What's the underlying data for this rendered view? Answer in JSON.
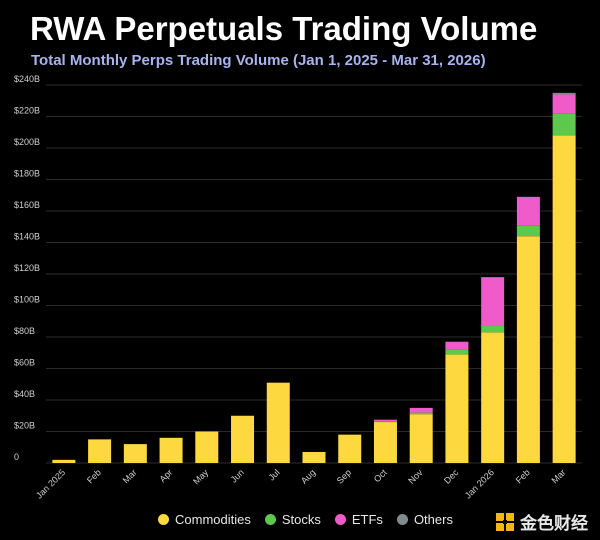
{
  "header": {
    "title": "RWA Perpetuals Trading Volume",
    "subtitle": "Total Monthly Perps Trading Volume (Jan 1, 2025 - Mar 31, 2026)"
  },
  "colors": {
    "background": "#000000",
    "Commodities": "#fdd83f",
    "Stocks": "#5cc84c",
    "ETFs": "#ef5bc9",
    "Others": "#7e8c8b",
    "grid": "#2b2b2b"
  },
  "chart_data": {
    "type": "bar",
    "stacked": true,
    "title": "RWA Perpetuals Trading Volume",
    "subtitle": "Total Monthly Perps Trading Volume (Jan 1, 2025 - Mar 31, 2026)",
    "xlabel": "",
    "ylabel": "",
    "ylim": [
      0,
      240
    ],
    "yunit": "B",
    "y_ticks": [
      0,
      20,
      40,
      60,
      80,
      100,
      120,
      140,
      160,
      180,
      200,
      220,
      240
    ],
    "y_tick_labels": [
      "0",
      "$20B",
      "$40B",
      "$60B",
      "$80B",
      "$100B",
      "$120B",
      "$140B",
      "$160B",
      "$180B",
      "$200B",
      "$220B",
      "$240B"
    ],
    "grid": true,
    "legend_position": "bottom",
    "categories": [
      "Jan 2025",
      "Feb",
      "Mar",
      "Apr",
      "May",
      "Jun",
      "Jul",
      "Aug",
      "Sep",
      "Oct",
      "Nov",
      "Dec",
      "Jan 2026",
      "Feb",
      "Mar"
    ],
    "series": [
      {
        "name": "Commodities",
        "values": [
          2,
          15,
          12,
          16,
          20,
          30,
          51,
          7,
          18,
          26,
          31,
          69,
          83,
          144,
          208
        ]
      },
      {
        "name": "Stocks",
        "values": [
          0,
          0,
          0,
          0,
          0,
          0,
          0,
          0,
          0,
          0.5,
          1,
          3,
          4,
          7,
          14
        ]
      },
      {
        "name": "ETFs",
        "values": [
          0,
          0,
          0,
          0,
          0,
          0,
          0,
          0,
          0,
          1,
          3,
          5,
          31,
          18,
          12
        ]
      },
      {
        "name": "Others",
        "values": [
          0,
          0,
          0,
          0,
          0,
          0,
          0,
          0,
          0,
          0,
          0,
          0,
          0,
          0,
          1
        ]
      }
    ]
  },
  "legend": {
    "items": [
      {
        "label": "Commodities",
        "color": "#fdd83f"
      },
      {
        "label": "Stocks",
        "color": "#5cc84c"
      },
      {
        "label": "ETFs",
        "color": "#ef5bc9"
      },
      {
        "label": "Others",
        "color": "#7e8c8b"
      }
    ]
  },
  "watermark": {
    "text": "金色财经"
  }
}
